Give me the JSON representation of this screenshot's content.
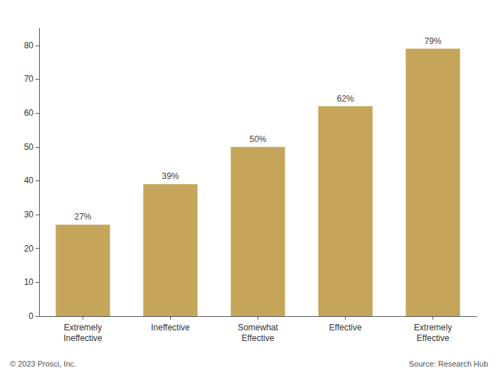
{
  "chart_data": {
    "type": "bar",
    "categories": [
      "Extremely\nIneffective",
      "Ineffective",
      "Somewhat\nEffective",
      "Effective",
      "Extremely\nEffective"
    ],
    "values": [
      27,
      39,
      50,
      62,
      79
    ],
    "value_labels": [
      "27%",
      "39%",
      "50%",
      "62%",
      "79%"
    ],
    "data_labels": true,
    "color": "#C4A55A",
    "ylim": [
      0,
      85
    ],
    "yticks": [
      0,
      10,
      20,
      30,
      40,
      50,
      60,
      70,
      80
    ],
    "grid": false,
    "annotations": [
      "© 2023 Prosci, Inc.",
      "Source: Research Hub"
    ]
  }
}
